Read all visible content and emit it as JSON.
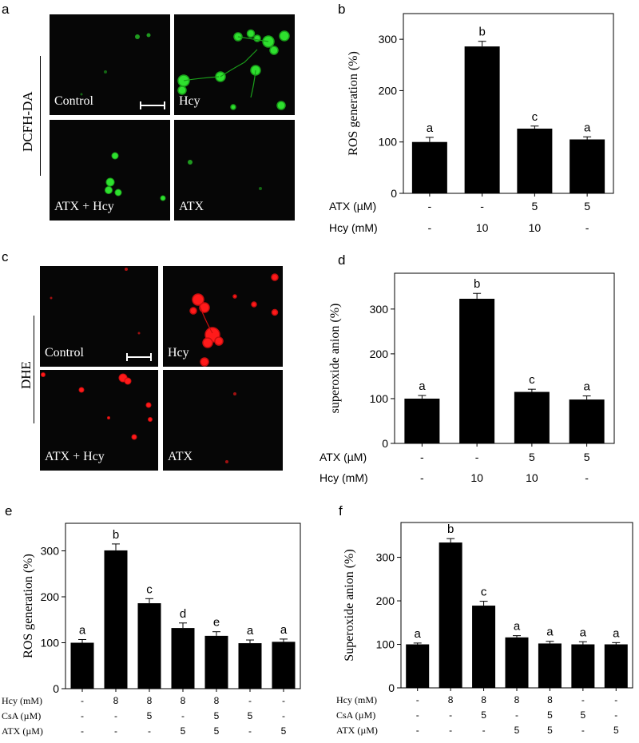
{
  "panels": {
    "a": {
      "letter": "a",
      "stain": "DCFH-DA",
      "images": [
        "Control",
        "Hcy",
        "ATX + Hcy",
        "ATX"
      ]
    },
    "c": {
      "letter": "c",
      "stain": "DHE",
      "images": [
        "Control",
        "Hcy",
        "ATX + Hcy",
        "ATX"
      ]
    }
  },
  "colors": {
    "bar": "#000000",
    "green_signal": "#2ee02e",
    "red_signal": "#ff1a1a",
    "background": "#060606"
  },
  "chart_data": [
    {
      "panel": "b",
      "type": "bar",
      "ylabel": "ROS generation (%)",
      "ylim": [
        0,
        350
      ],
      "yticks": [
        0,
        100,
        200,
        300
      ],
      "values": [
        100,
        286,
        126,
        105
      ],
      "errors": [
        9,
        10,
        5,
        5
      ],
      "sig": [
        "a",
        "b",
        "c",
        "a"
      ],
      "conditions": [
        {
          "label": "ATX  (µM)",
          "values": [
            "-",
            "-",
            "5",
            "5"
          ]
        },
        {
          "label": "Hcy (mM)",
          "values": [
            "-",
            "10",
            "10",
            "-"
          ]
        }
      ]
    },
    {
      "panel": "d",
      "type": "bar",
      "ylabel": "superoxide anion (%)",
      "ylim": [
        0,
        380
      ],
      "yticks": [
        0,
        100,
        200,
        300
      ],
      "values": [
        100,
        323,
        115,
        98
      ],
      "errors": [
        7,
        12,
        6,
        8
      ],
      "sig": [
        "a",
        "b",
        "c",
        "a"
      ],
      "conditions": [
        {
          "label": "ATX  (µM)",
          "values": [
            "-",
            "-",
            "5",
            "5"
          ]
        },
        {
          "label": "Hcy (mM)",
          "values": [
            "-",
            "10",
            "10",
            "-"
          ]
        }
      ]
    },
    {
      "panel": "e",
      "type": "bar",
      "ylabel": "ROS generation (%)",
      "ylim": [
        0,
        360
      ],
      "yticks": [
        0,
        100,
        200,
        300
      ],
      "values": [
        100,
        301,
        186,
        132,
        115,
        99,
        102
      ],
      "errors": [
        7,
        14,
        10,
        11,
        9,
        7,
        6
      ],
      "sig": [
        "a",
        "b",
        "c",
        "d",
        "e",
        "a",
        "a"
      ],
      "conditions": [
        {
          "label": "Hcy (mM)",
          "values": [
            "-",
            "8",
            "8",
            "8",
            "8",
            "-",
            "-"
          ]
        },
        {
          "label": "CsA (µM)",
          "values": [
            "-",
            "-",
            "5",
            "-",
            "5",
            "5",
            "-"
          ]
        },
        {
          "label": "ATX (µM)",
          "values": [
            "-",
            "-",
            "-",
            "5",
            "5",
            "-",
            "5"
          ]
        }
      ]
    },
    {
      "panel": "f",
      "type": "bar",
      "ylabel": "Superoxide anion (%)",
      "ylim": [
        0,
        380
      ],
      "yticks": [
        0,
        100,
        200,
        300
      ],
      "values": [
        100,
        334,
        189,
        116,
        102,
        100,
        100
      ],
      "errors": [
        3,
        9,
        10,
        4,
        5,
        6,
        4
      ],
      "sig": [
        "a",
        "b",
        "c",
        "a",
        "a",
        "a",
        "a"
      ],
      "conditions": [
        {
          "label": "Hcy (mM)",
          "values": [
            "-",
            "8",
            "8",
            "8",
            "8",
            "-",
            "-"
          ]
        },
        {
          "label": "CsA (µM)",
          "values": [
            "-",
            "-",
            "5",
            "-",
            "5",
            "5",
            "-"
          ]
        },
        {
          "label": "ATX (µM)",
          "values": [
            "-",
            "-",
            "-",
            "5",
            "5",
            "-",
            "5"
          ]
        }
      ]
    }
  ]
}
